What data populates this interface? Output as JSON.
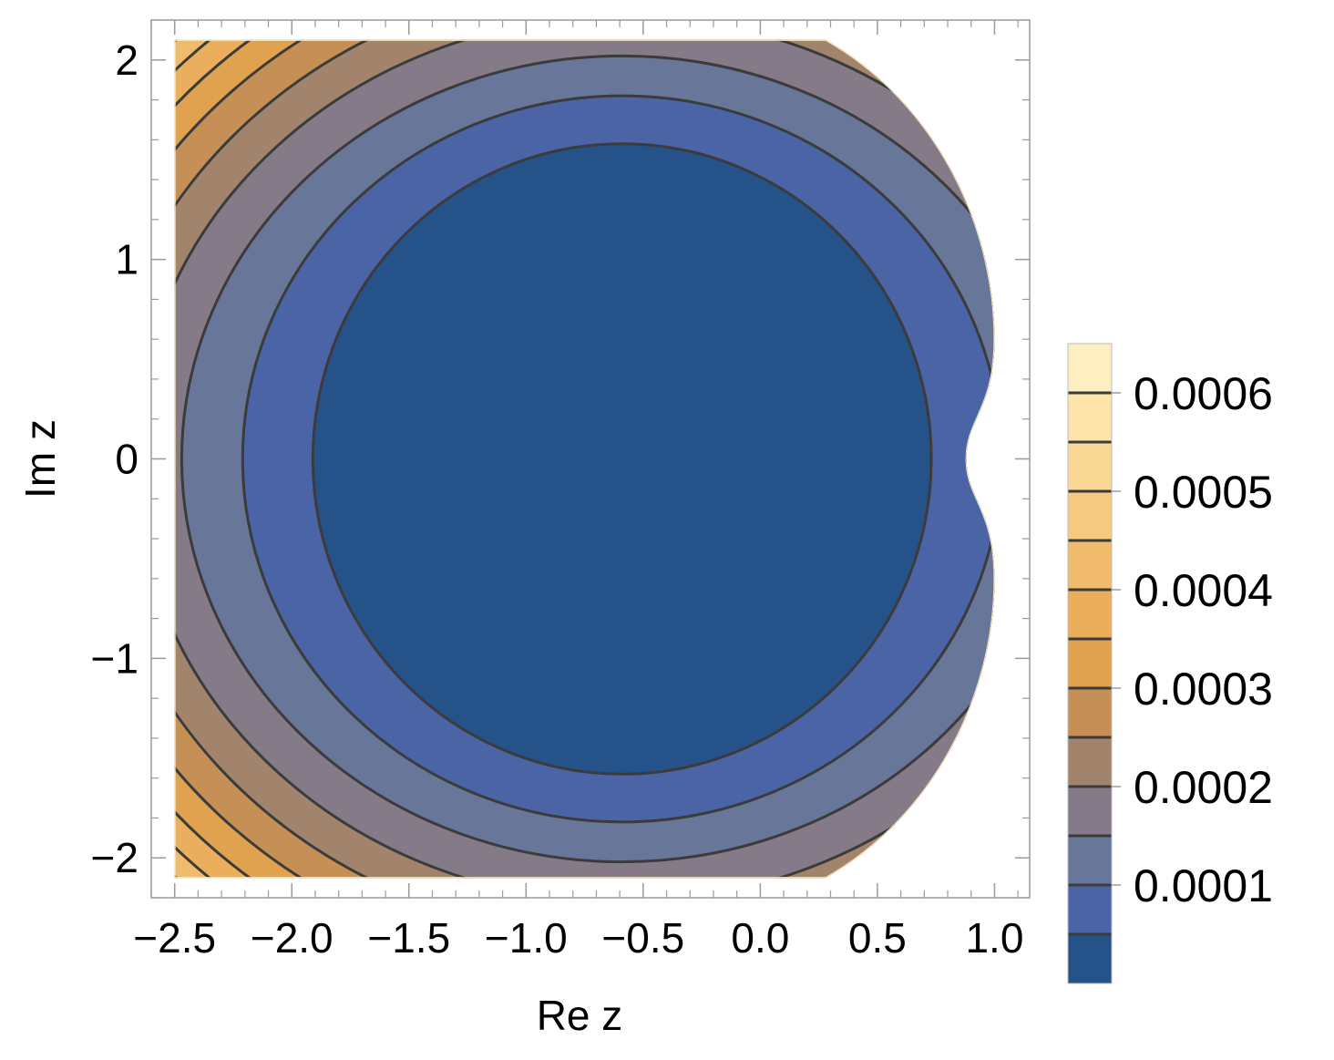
{
  "chart_data": {
    "type": "contour",
    "xlabel": "Re z",
    "ylabel": "Im z",
    "xlim": [
      -2.6,
      1.15
    ],
    "ylim": [
      -2.2,
      2.2
    ],
    "data_region": {
      "x": [
        -2.5,
        1.0
      ],
      "y": [
        -2.1,
        2.1
      ]
    },
    "x_ticks": [
      {
        "value": -2.5,
        "label": "−2.5"
      },
      {
        "value": -2.0,
        "label": "−2.0"
      },
      {
        "value": -1.5,
        "label": "−1.5"
      },
      {
        "value": -1.0,
        "label": "−1.0"
      },
      {
        "value": -0.5,
        "label": "−0.5"
      },
      {
        "value": 0.0,
        "label": "0.0"
      },
      {
        "value": 0.5,
        "label": "0.5"
      },
      {
        "value": 1.0,
        "label": "1.0"
      }
    ],
    "y_ticks": [
      {
        "value": -2,
        "label": "−2"
      },
      {
        "value": -1,
        "label": "−1"
      },
      {
        "value": 0,
        "label": "0"
      },
      {
        "value": 1,
        "label": "1"
      },
      {
        "value": 2,
        "label": "2"
      }
    ],
    "contour_spacing": 5e-05,
    "contour_levels": [
      5e-05,
      0.0001,
      0.00015,
      0.0002,
      0.00025,
      0.0003,
      0.00035,
      0.0004,
      0.00045,
      0.0005,
      0.00055,
      0.0006
    ],
    "contour_rx_at_levels": [
      1.32,
      1.62,
      1.88,
      2.08,
      2.25,
      2.4,
      2.53,
      2.64,
      2.73,
      2.81,
      2.88,
      2.94
    ],
    "contour_ry_at_levels": [
      1.58,
      1.82,
      2.02,
      2.22,
      2.4,
      2.56,
      2.7,
      2.82,
      2.93,
      3.03,
      3.12,
      3.2
    ],
    "contour_center": {
      "x": -0.59,
      "y": 0
    },
    "right_boundary": {
      "x_at_zero": 0.88,
      "x_at_bulge": 1.0,
      "bulge_y": 0.6,
      "x_at_top": 0.28
    },
    "colorbar": {
      "range": [
        0,
        0.00065
      ],
      "tick_labels": [
        {
          "value": 0.0001,
          "label": "0.0001"
        },
        {
          "value": 0.0002,
          "label": "0.0002"
        },
        {
          "value": 0.0003,
          "label": "0.0003"
        },
        {
          "value": 0.0004,
          "label": "0.0004"
        },
        {
          "value": 0.0005,
          "label": "0.0005"
        },
        {
          "value": 0.0006,
          "label": "0.0006"
        }
      ],
      "band_colors": [
        "#26528a",
        "#4a64a6",
        "#68769a",
        "#857a88",
        "#a2846d",
        "#c68f56",
        "#e0a24e",
        "#eaae5c",
        "#f0bb6d",
        "#f5c97f",
        "#f9d794",
        "#fce4ab",
        "#fdefc2"
      ]
    },
    "line_color": "#3b3b3b",
    "grid": false
  }
}
